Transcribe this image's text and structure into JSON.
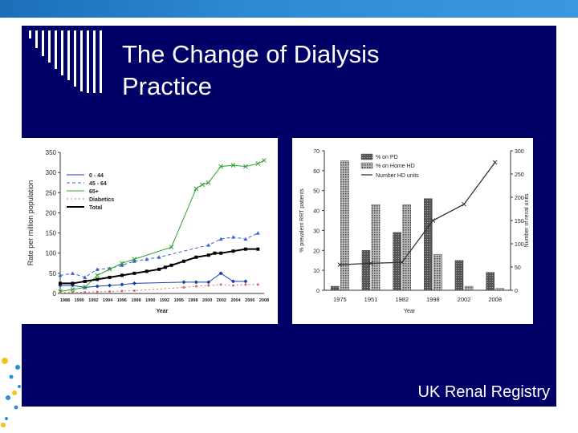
{
  "slide": {
    "title_line1": "The Change of Dialysis",
    "title_line2": "Practice",
    "footer": "UK  Renal Registry"
  },
  "chart_data": [
    {
      "type": "line",
      "xlabel": "Year",
      "ylabel": "Rate per million population",
      "ylim": [
        0,
        350
      ],
      "yticks": [
        0,
        50,
        100,
        150,
        200,
        250,
        300,
        350
      ],
      "xticks": [
        "1988",
        "1990",
        "1992",
        "1994",
        "1996",
        "1998",
        "1990",
        "1992",
        "1995",
        "1998",
        "2000",
        "2002",
        "2004",
        "2006",
        "2008"
      ],
      "legend_position": "top-left",
      "series": [
        {
          "name": "0 - 44",
          "color": "#1a3ea8",
          "marker": "diamond",
          "dash": "",
          "values": [
            [
              0,
              20
            ],
            [
              1,
              20
            ],
            [
              2,
              15
            ],
            [
              3,
              18
            ],
            [
              4,
              20
            ],
            [
              5,
              22
            ],
            [
              6,
              25
            ],
            [
              10,
              28
            ],
            [
              11,
              28
            ],
            [
              12,
              28
            ],
            [
              13,
              50
            ],
            [
              14,
              30
            ],
            [
              15,
              30
            ]
          ]
        },
        {
          "name": "45 - 64",
          "color": "#3a5fd0",
          "marker": "triangle",
          "dash": "4,3",
          "values": [
            [
              0,
              45
            ],
            [
              1,
              50
            ],
            [
              2,
              40
            ],
            [
              3,
              60
            ],
            [
              4,
              62
            ],
            [
              5,
              70
            ],
            [
              6,
              80
            ],
            [
              7,
              85
            ],
            [
              8,
              90
            ],
            [
              12,
              120
            ],
            [
              13,
              135
            ],
            [
              14,
              140
            ],
            [
              15,
              135
            ],
            [
              16,
              150
            ]
          ]
        },
        {
          "name": "65+",
          "color": "#2ca02c",
          "marker": "x",
          "dash": "",
          "values": [
            [
              0,
              5
            ],
            [
              1,
              10
            ],
            [
              2,
              15
            ],
            [
              3,
              45
            ],
            [
              4,
              60
            ],
            [
              5,
              75
            ],
            [
              6,
              85
            ],
            [
              9,
              115
            ],
            [
              11,
              260
            ],
            [
              11.5,
              270
            ],
            [
              12,
              275
            ],
            [
              13,
              315
            ],
            [
              14,
              318
            ],
            [
              15,
              315
            ],
            [
              16,
              322
            ],
            [
              16.5,
              330
            ]
          ]
        },
        {
          "name": "Diabetics",
          "color": "#d46a6a",
          "marker": "dot",
          "dash": "2,3",
          "values": [
            [
              0,
              2
            ],
            [
              1,
              3
            ],
            [
              2,
              3
            ],
            [
              3,
              4
            ],
            [
              4,
              5
            ],
            [
              5,
              6
            ],
            [
              6,
              7
            ],
            [
              10,
              15
            ],
            [
              11,
              18
            ],
            [
              12,
              20
            ],
            [
              13,
              22
            ],
            [
              14,
              20
            ],
            [
              15,
              22
            ],
            [
              16,
              22
            ]
          ]
        },
        {
          "name": "Total",
          "color": "#000000",
          "marker": "square",
          "dash": "",
          "values": [
            [
              0,
              25
            ],
            [
              1,
              25
            ],
            [
              2,
              30
            ],
            [
              3,
              35
            ],
            [
              4,
              40
            ],
            [
              5,
              45
            ],
            [
              6,
              50
            ],
            [
              7,
              55
            ],
            [
              8,
              60
            ],
            [
              8.5,
              65
            ],
            [
              9,
              70
            ],
            [
              10,
              80
            ],
            [
              11,
              90
            ],
            [
              12,
              95
            ],
            [
              12.5,
              100
            ],
            [
              13,
              100
            ],
            [
              14,
              105
            ],
            [
              15,
              110
            ],
            [
              16,
              110
            ]
          ]
        }
      ]
    },
    {
      "type": "bar",
      "xlabel": "Year",
      "ylabel": "% prevalent RRT patients",
      "y2label": "Number of renal units",
      "ylim": [
        0,
        70
      ],
      "y2lim": [
        0,
        300
      ],
      "yticks": [
        0,
        10,
        20,
        30,
        40,
        50,
        60,
        70
      ],
      "y2ticks": [
        0,
        50,
        100,
        150,
        200,
        250,
        300
      ],
      "categories": [
        "1975",
        "1951",
        "1982",
        "1998",
        "2002",
        "2008"
      ],
      "legend_position": "top-left",
      "series": [
        {
          "name": "% on PD",
          "color": "#555555",
          "values": [
            2,
            20,
            29,
            46,
            15,
            9
          ]
        },
        {
          "name": "% on Home HD",
          "color": "#999999",
          "values": [
            65,
            43,
            43,
            18,
            2,
            1
          ]
        }
      ],
      "line_series": {
        "name": "Number HD units",
        "color": "#333333",
        "values": [
          55,
          58,
          60,
          150,
          185,
          275
        ]
      }
    }
  ]
}
